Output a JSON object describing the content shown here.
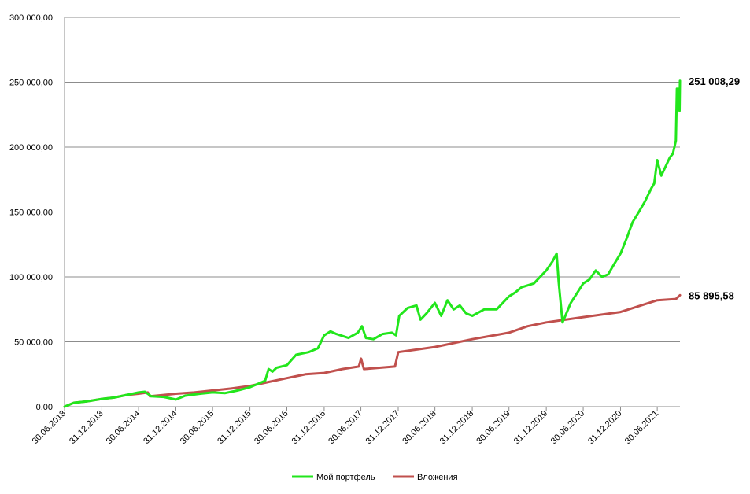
{
  "chart_data": {
    "type": "line",
    "title": "",
    "xlabel": "",
    "ylabel": "",
    "ylim": [
      0,
      300000
    ],
    "xlim": [
      "2013-06-30",
      "2021-10-20"
    ],
    "grid": "horizontal",
    "legend_position": "bottom",
    "y_ticks": [
      0,
      50000,
      100000,
      150000,
      200000,
      250000,
      300000
    ],
    "y_tick_labels": [
      "0,00",
      "50 000,00",
      "100 000,00",
      "150 000,00",
      "200 000,00",
      "250 000,00",
      "300 000,00"
    ],
    "x_ticks": [
      "2013-06-30",
      "2013-12-31",
      "2014-06-30",
      "2014-12-31",
      "2015-06-30",
      "2015-12-31",
      "2016-06-30",
      "2016-12-31",
      "2017-06-30",
      "2017-12-31",
      "2018-06-30",
      "2018-12-31",
      "2019-06-30",
      "2019-12-31",
      "2020-06-30",
      "2020-12-31",
      "2021-06-30"
    ],
    "x_tick_labels": [
      "30.06.2013",
      "31.12.2013",
      "30.06.2014",
      "31.12.2014",
      "30.06.2015",
      "31.12.2015",
      "30.06.2016",
      "31.12.2016",
      "30.06.2017",
      "31.12.2017",
      "30.06.2018",
      "31.12.2018",
      "30.06.2019",
      "31.12.2019",
      "30.06.2020",
      "31.12.2020",
      "30.06.2021"
    ],
    "series": [
      {
        "name": "Мой портфель",
        "color": "#22e61c",
        "end_label": "251 008,29",
        "points": [
          [
            "2013-06-30",
            0
          ],
          [
            "2013-08-15",
            3000
          ],
          [
            "2013-10-15",
            4000
          ],
          [
            "2013-12-31",
            6000
          ],
          [
            "2014-03-01",
            7000
          ],
          [
            "2014-05-01",
            9000
          ],
          [
            "2014-06-30",
            11000
          ],
          [
            "2014-07-31",
            11500
          ],
          [
            "2014-09-01",
            8000
          ],
          [
            "2014-11-01",
            7500
          ],
          [
            "2014-12-31",
            5500
          ],
          [
            "2015-02-15",
            8500
          ],
          [
            "2015-04-30",
            10000
          ],
          [
            "2015-06-30",
            11000
          ],
          [
            "2015-08-31",
            10500
          ],
          [
            "2015-10-31",
            12500
          ],
          [
            "2015-12-31",
            15000
          ],
          [
            "2016-02-15",
            18000
          ],
          [
            "2016-03-15",
            20000
          ],
          [
            "2016-04-01",
            29000
          ],
          [
            "2016-04-20",
            27000
          ],
          [
            "2016-05-10",
            30000
          ],
          [
            "2016-06-30",
            32000
          ],
          [
            "2016-08-15",
            40000
          ],
          [
            "2016-10-15",
            42000
          ],
          [
            "2016-11-30",
            45000
          ],
          [
            "2016-12-31",
            55000
          ],
          [
            "2017-01-31",
            58000
          ],
          [
            "2017-03-01",
            56000
          ],
          [
            "2017-04-30",
            53000
          ],
          [
            "2017-06-15",
            57000
          ],
          [
            "2017-07-05",
            62000
          ],
          [
            "2017-07-25",
            53000
          ],
          [
            "2017-08-31",
            52000
          ],
          [
            "2017-10-15",
            56000
          ],
          [
            "2017-11-30",
            57000
          ],
          [
            "2017-12-20",
            55000
          ],
          [
            "2018-01-05",
            70000
          ],
          [
            "2018-02-15",
            76000
          ],
          [
            "2018-03-31",
            78000
          ],
          [
            "2018-04-20",
            67000
          ],
          [
            "2018-05-20",
            72000
          ],
          [
            "2018-06-30",
            80000
          ],
          [
            "2018-07-31",
            70000
          ],
          [
            "2018-08-31",
            82000
          ],
          [
            "2018-09-30",
            75000
          ],
          [
            "2018-10-31",
            78000
          ],
          [
            "2018-11-30",
            72000
          ],
          [
            "2018-12-31",
            70000
          ],
          [
            "2019-02-28",
            75000
          ],
          [
            "2019-04-30",
            75000
          ],
          [
            "2019-06-30",
            85000
          ],
          [
            "2019-07-31",
            88000
          ],
          [
            "2019-08-31",
            92000
          ],
          [
            "2019-10-31",
            95000
          ],
          [
            "2019-12-31",
            105000
          ],
          [
            "2020-01-31",
            112000
          ],
          [
            "2020-02-20",
            118000
          ],
          [
            "2020-03-01",
            96000
          ],
          [
            "2020-03-20",
            65000
          ],
          [
            "2020-04-30",
            80000
          ],
          [
            "2020-06-30",
            95000
          ],
          [
            "2020-07-31",
            98000
          ],
          [
            "2020-08-31",
            105000
          ],
          [
            "2020-09-30",
            100000
          ],
          [
            "2020-10-31",
            102000
          ],
          [
            "2020-11-30",
            110000
          ],
          [
            "2020-12-31",
            118000
          ],
          [
            "2021-01-31",
            130000
          ],
          [
            "2021-02-28",
            142000
          ],
          [
            "2021-03-31",
            150000
          ],
          [
            "2021-04-30",
            158000
          ],
          [
            "2021-05-31",
            168000
          ],
          [
            "2021-06-15",
            172000
          ],
          [
            "2021-06-30",
            190000
          ],
          [
            "2021-07-20",
            178000
          ],
          [
            "2021-08-31",
            192000
          ],
          [
            "2021-09-15",
            195000
          ],
          [
            "2021-09-30",
            205000
          ],
          [
            "2021-10-05",
            245000
          ],
          [
            "2021-10-10",
            230000
          ],
          [
            "2021-10-15",
            245000
          ],
          [
            "2021-10-18",
            228000
          ],
          [
            "2021-10-20",
            251008.29
          ]
        ]
      },
      {
        "name": "Вложения",
        "color": "#c0504d",
        "end_label": "85 895,58",
        "points": [
          [
            "2013-06-30",
            0
          ],
          [
            "2013-08-15",
            3000
          ],
          [
            "2013-10-15",
            4000
          ],
          [
            "2013-12-31",
            6000
          ],
          [
            "2014-03-01",
            7000
          ],
          [
            "2014-05-01",
            9000
          ],
          [
            "2014-06-30",
            10000
          ],
          [
            "2014-08-15",
            11000
          ],
          [
            "2014-08-25",
            8000
          ],
          [
            "2014-10-31",
            9000
          ],
          [
            "2014-12-31",
            10000
          ],
          [
            "2015-03-31",
            11000
          ],
          [
            "2015-06-30",
            12500
          ],
          [
            "2015-09-30",
            14000
          ],
          [
            "2015-12-31",
            16000
          ],
          [
            "2016-03-31",
            19000
          ],
          [
            "2016-06-30",
            22000
          ],
          [
            "2016-09-30",
            25000
          ],
          [
            "2016-12-31",
            26000
          ],
          [
            "2017-03-31",
            29000
          ],
          [
            "2017-06-20",
            31000
          ],
          [
            "2017-07-01",
            37000
          ],
          [
            "2017-07-15",
            29000
          ],
          [
            "2017-12-15",
            31000
          ],
          [
            "2017-12-31",
            42000
          ],
          [
            "2018-06-30",
            46000
          ],
          [
            "2018-12-31",
            52000
          ],
          [
            "2019-06-30",
            57000
          ],
          [
            "2019-09-30",
            62000
          ],
          [
            "2019-12-31",
            65000
          ],
          [
            "2020-06-30",
            69000
          ],
          [
            "2020-12-31",
            73000
          ],
          [
            "2021-06-30",
            82000
          ],
          [
            "2021-09-30",
            83000
          ],
          [
            "2021-10-20",
            85895.58
          ]
        ]
      }
    ]
  }
}
